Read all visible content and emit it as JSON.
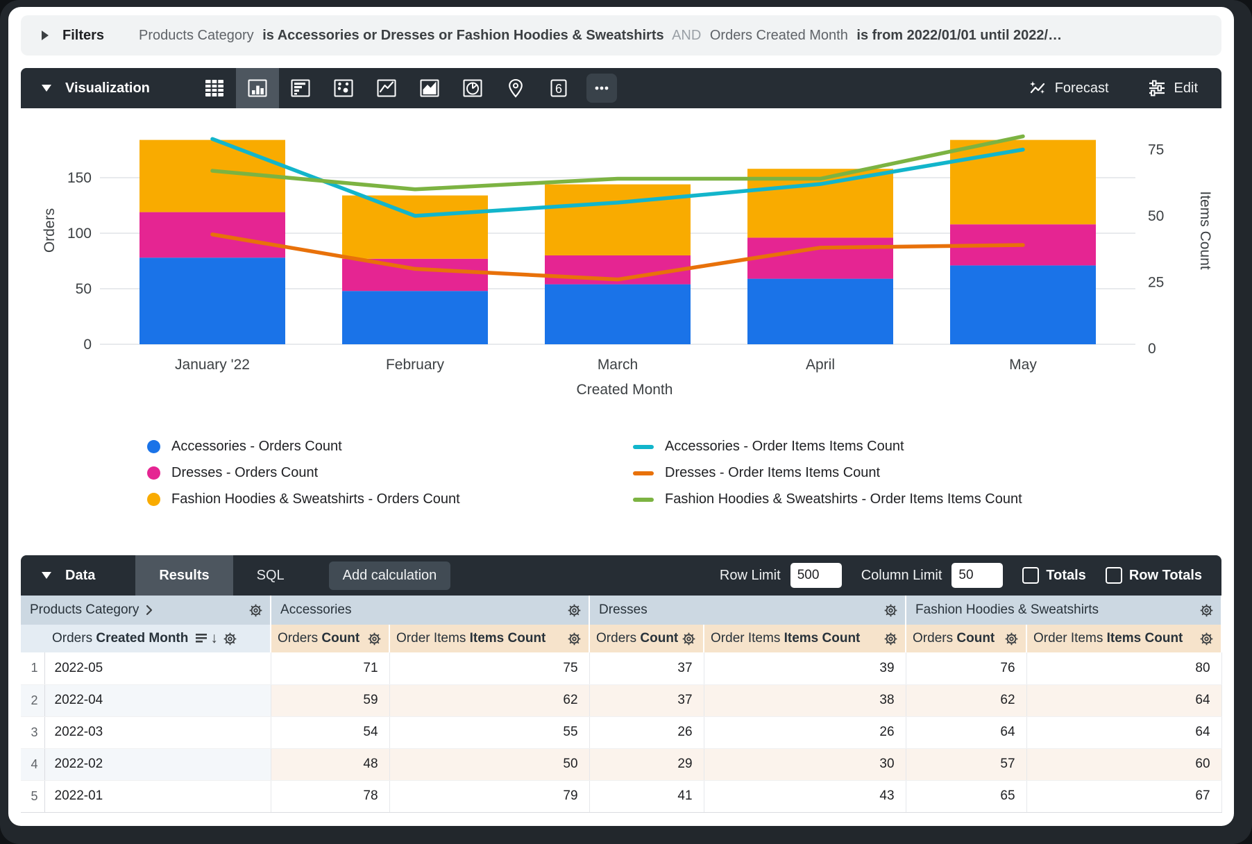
{
  "filters_bar": {
    "label": "Filters",
    "summary_parts": [
      {
        "text": "Products Category",
        "role": "field"
      },
      {
        "text": "is Accessories or Dresses or Fashion Hoodies & Sweatshirts",
        "role": "value"
      },
      {
        "text": "AND",
        "role": "conjunction"
      },
      {
        "text": "Orders Created Month",
        "role": "field"
      },
      {
        "text": "is from 2022/01/01 until 2022/…",
        "role": "value"
      }
    ]
  },
  "viz_toolbar": {
    "label": "Visualization",
    "icons": [
      "table",
      "column-chart",
      "bar-chart",
      "scatter-plot",
      "line-chart",
      "area-chart",
      "pie-chart",
      "map",
      "single-value",
      "more-options"
    ],
    "active_icon": "column-chart",
    "single_value_glyph": "6",
    "forecast_label": "Forecast",
    "edit_label": "Edit"
  },
  "chart_data": {
    "type": "combo-bar-line",
    "x_categories": [
      "January '22",
      "February",
      "March",
      "April",
      "May"
    ],
    "x_axis_label": "Created Month",
    "grid": true,
    "legend_position": "bottom",
    "left_axis": {
      "label": "Orders",
      "ticks": [
        0,
        50,
        100,
        150
      ],
      "range": [
        0,
        205
      ]
    },
    "right_axis": {
      "label": "Items Count",
      "ticks": [
        0,
        25,
        50,
        75
      ],
      "range": [
        0,
        86
      ]
    },
    "bar_series": [
      {
        "name": "Accessories - Orders Count",
        "color": "#1a73e8",
        "values": [
          78,
          48,
          54,
          59,
          71
        ]
      },
      {
        "name": "Dresses - Orders Count",
        "color": "#e52592",
        "values": [
          41,
          29,
          26,
          37,
          37
        ]
      },
      {
        "name": "Fashion Hoodies & Sweatshirts - Orders Count",
        "color": "#f9ab00",
        "values": [
          65,
          57,
          64,
          62,
          76
        ]
      }
    ],
    "line_series": [
      {
        "name": "Accessories - Order Items Items Count",
        "color": "#12b5cb",
        "values": [
          79,
          50,
          55,
          62,
          75
        ]
      },
      {
        "name": "Dresses - Order Items Items Count",
        "color": "#e8710a",
        "values": [
          43,
          30,
          26,
          38,
          39
        ]
      },
      {
        "name": "Fashion Hoodies & Sweatshirts - Order Items Items Count",
        "color": "#7cb342",
        "values": [
          67,
          60,
          64,
          64,
          80
        ]
      }
    ]
  },
  "data_toolbar": {
    "label": "Data",
    "tabs": [
      {
        "label": "Results",
        "active": true
      },
      {
        "label": "SQL",
        "active": false
      }
    ],
    "add_calculation_label": "Add calculation",
    "row_limit_label": "Row Limit",
    "row_limit_value": "500",
    "column_limit_label": "Column Limit",
    "column_limit_value": "50",
    "totals_label": "Totals",
    "totals_checked": false,
    "row_totals_label": "Row Totals",
    "row_totals_checked": false
  },
  "table": {
    "dimension_group_header": "Products Category",
    "group_headers": [
      "Accessories",
      "Dresses",
      "Fashion Hoodies & Sweatshirts"
    ],
    "dimension_column": {
      "prefix": "Orders ",
      "bold": "Created Month"
    },
    "measure_columns": [
      {
        "prefix": "Orders ",
        "bold": "Count"
      },
      {
        "prefix": "Order Items ",
        "bold": "Items Count"
      },
      {
        "prefix": "Orders ",
        "bold": "Count"
      },
      {
        "prefix": "Order Items ",
        "bold": "Items Count"
      },
      {
        "prefix": "Orders ",
        "bold": "Count"
      },
      {
        "prefix": "Order Items ",
        "bold": "Items Count"
      }
    ],
    "rows": [
      {
        "num": "1",
        "month": "2022-05",
        "values": [
          "71",
          "75",
          "37",
          "39",
          "76",
          "80"
        ]
      },
      {
        "num": "2",
        "month": "2022-04",
        "values": [
          "59",
          "62",
          "37",
          "38",
          "62",
          "64"
        ]
      },
      {
        "num": "3",
        "month": "2022-03",
        "values": [
          "54",
          "55",
          "26",
          "26",
          "64",
          "64"
        ]
      },
      {
        "num": "4",
        "month": "2022-02",
        "values": [
          "48",
          "50",
          "29",
          "30",
          "57",
          "60"
        ]
      },
      {
        "num": "5",
        "month": "2022-01",
        "values": [
          "78",
          "79",
          "41",
          "43",
          "65",
          "67"
        ]
      }
    ]
  },
  "colors": {
    "accent_blue": "#1a73e8",
    "magenta": "#e52592",
    "orange_bar": "#f9ab00",
    "cyan_line": "#12b5cb",
    "orange_line": "#e8710a",
    "green_line": "#7cb342",
    "toolbar_bg": "#262d34",
    "active_item_bg": "#4d565f",
    "header_group_bg": "#ccd8e2",
    "header_dimension_bg": "#e4ecf3",
    "header_measure_bg": "#f6e3cb"
  }
}
